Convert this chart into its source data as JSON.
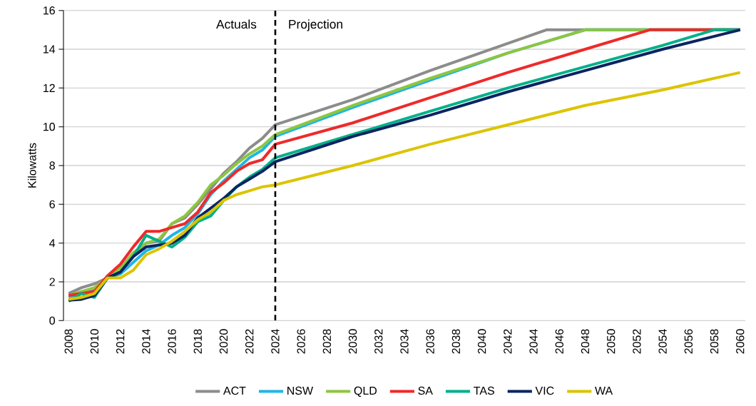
{
  "chart_data": {
    "type": "line",
    "ylabel": "Kilowatts",
    "xlim": [
      2007.6,
      2060.4
    ],
    "ylim": [
      0,
      16
    ],
    "xticks": [
      2008,
      2010,
      2012,
      2014,
      2016,
      2018,
      2020,
      2022,
      2024,
      2026,
      2028,
      2030,
      2032,
      2034,
      2036,
      2038,
      2040,
      2042,
      2044,
      2046,
      2048,
      2050,
      2052,
      2054,
      2056,
      2058,
      2060
    ],
    "yticks": [
      0,
      2,
      4,
      6,
      8,
      10,
      12,
      14,
      16
    ],
    "grid": "y",
    "legend": "bottom",
    "line_style": "solid",
    "marker": "none",
    "ref_lines": [
      {
        "axis": "x",
        "value": 2024,
        "color": "#000000",
        "line_style": "dashed"
      }
    ],
    "annotations": [
      "Actuals",
      "Projection"
    ],
    "series": [
      {
        "name": "ACT",
        "color": "#8c8c8c",
        "x": [
          2008,
          2009,
          2010,
          2011,
          2012,
          2013,
          2014,
          2015,
          2016,
          2017,
          2018,
          2019,
          2020,
          2021,
          2022,
          2023,
          2024,
          2030,
          2036,
          2042,
          2045,
          2060
        ],
        "values": [
          1.4,
          1.7,
          1.9,
          2.2,
          2.7,
          3.4,
          4.0,
          4.1,
          5.0,
          5.3,
          6.0,
          6.8,
          7.6,
          8.2,
          8.9,
          9.4,
          10.1,
          11.4,
          12.9,
          14.3,
          15,
          15
        ]
      },
      {
        "name": "NSW",
        "color": "#1fb5e6",
        "x": [
          2008,
          2009,
          2010,
          2011,
          2012,
          2013,
          2014,
          2015,
          2016,
          2017,
          2018,
          2019,
          2020,
          2021,
          2022,
          2023,
          2024,
          2030,
          2036,
          2042,
          2048,
          2060
        ],
        "values": [
          1.2,
          1.4,
          1.6,
          2.2,
          2.4,
          3.0,
          3.6,
          3.9,
          4.4,
          4.8,
          5.5,
          6.5,
          7.2,
          7.8,
          8.4,
          8.8,
          9.5,
          11.0,
          12.4,
          13.8,
          15,
          15
        ]
      },
      {
        "name": "QLD",
        "color": "#8dc63f",
        "x": [
          2008,
          2009,
          2010,
          2011,
          2012,
          2013,
          2014,
          2015,
          2016,
          2017,
          2018,
          2019,
          2020,
          2021,
          2022,
          2023,
          2024,
          2030,
          2036,
          2042,
          2048,
          2060
        ],
        "values": [
          1.3,
          1.5,
          1.7,
          2.2,
          2.7,
          3.5,
          4.0,
          4.2,
          5.0,
          5.4,
          6.1,
          7.0,
          7.5,
          8.1,
          8.6,
          9.0,
          9.6,
          11.1,
          12.5,
          13.8,
          15,
          15
        ]
      },
      {
        "name": "SA",
        "color": "#ee2a2a",
        "x": [
          2008,
          2009,
          2010,
          2011,
          2012,
          2013,
          2014,
          2015,
          2016,
          2017,
          2018,
          2019,
          2020,
          2021,
          2022,
          2023,
          2024,
          2030,
          2036,
          2042,
          2048,
          2053,
          2060
        ],
        "values": [
          1.3,
          1.4,
          1.5,
          2.3,
          2.9,
          3.8,
          4.6,
          4.6,
          4.8,
          5.0,
          5.6,
          6.6,
          7.1,
          7.7,
          8.1,
          8.3,
          9.1,
          10.2,
          11.5,
          12.8,
          14.0,
          15,
          15
        ]
      },
      {
        "name": "TAS",
        "color": "#00b08a",
        "x": [
          2008,
          2009,
          2010,
          2011,
          2012,
          2013,
          2014,
          2015,
          2016,
          2017,
          2018,
          2019,
          2020,
          2021,
          2022,
          2023,
          2024,
          2030,
          2036,
          2042,
          2048,
          2054,
          2058,
          2060
        ],
        "values": [
          1.0,
          1.4,
          1.2,
          2.2,
          2.5,
          3.3,
          4.4,
          4.1,
          3.8,
          4.3,
          5.1,
          5.4,
          6.2,
          6.9,
          7.4,
          7.8,
          8.4,
          9.6,
          10.8,
          12.0,
          13.1,
          14.2,
          15,
          15
        ]
      },
      {
        "name": "VIC",
        "color": "#0b2560",
        "x": [
          2008,
          2009,
          2010,
          2011,
          2012,
          2013,
          2014,
          2015,
          2016,
          2017,
          2018,
          2019,
          2020,
          2021,
          2022,
          2023,
          2024,
          2030,
          2036,
          2042,
          2048,
          2054,
          2060
        ],
        "values": [
          1.05,
          1.1,
          1.3,
          2.2,
          2.5,
          3.3,
          3.8,
          3.9,
          4.0,
          4.4,
          5.3,
          5.8,
          6.3,
          6.9,
          7.3,
          7.7,
          8.2,
          9.5,
          10.6,
          11.8,
          12.9,
          14.0,
          15
        ]
      },
      {
        "name": "WA",
        "color": "#dcc400",
        "x": [
          2008,
          2009,
          2010,
          2011,
          2012,
          2013,
          2014,
          2015,
          2016,
          2017,
          2018,
          2019,
          2020,
          2021,
          2022,
          2023,
          2024,
          2030,
          2036,
          2042,
          2048,
          2054,
          2060
        ],
        "values": [
          1.1,
          1.2,
          1.4,
          2.2,
          2.2,
          2.6,
          3.4,
          3.7,
          4.1,
          4.6,
          5.2,
          5.6,
          6.2,
          6.5,
          6.7,
          6.9,
          7.0,
          8.0,
          9.1,
          10.1,
          11.1,
          11.9,
          12.8
        ]
      }
    ]
  }
}
